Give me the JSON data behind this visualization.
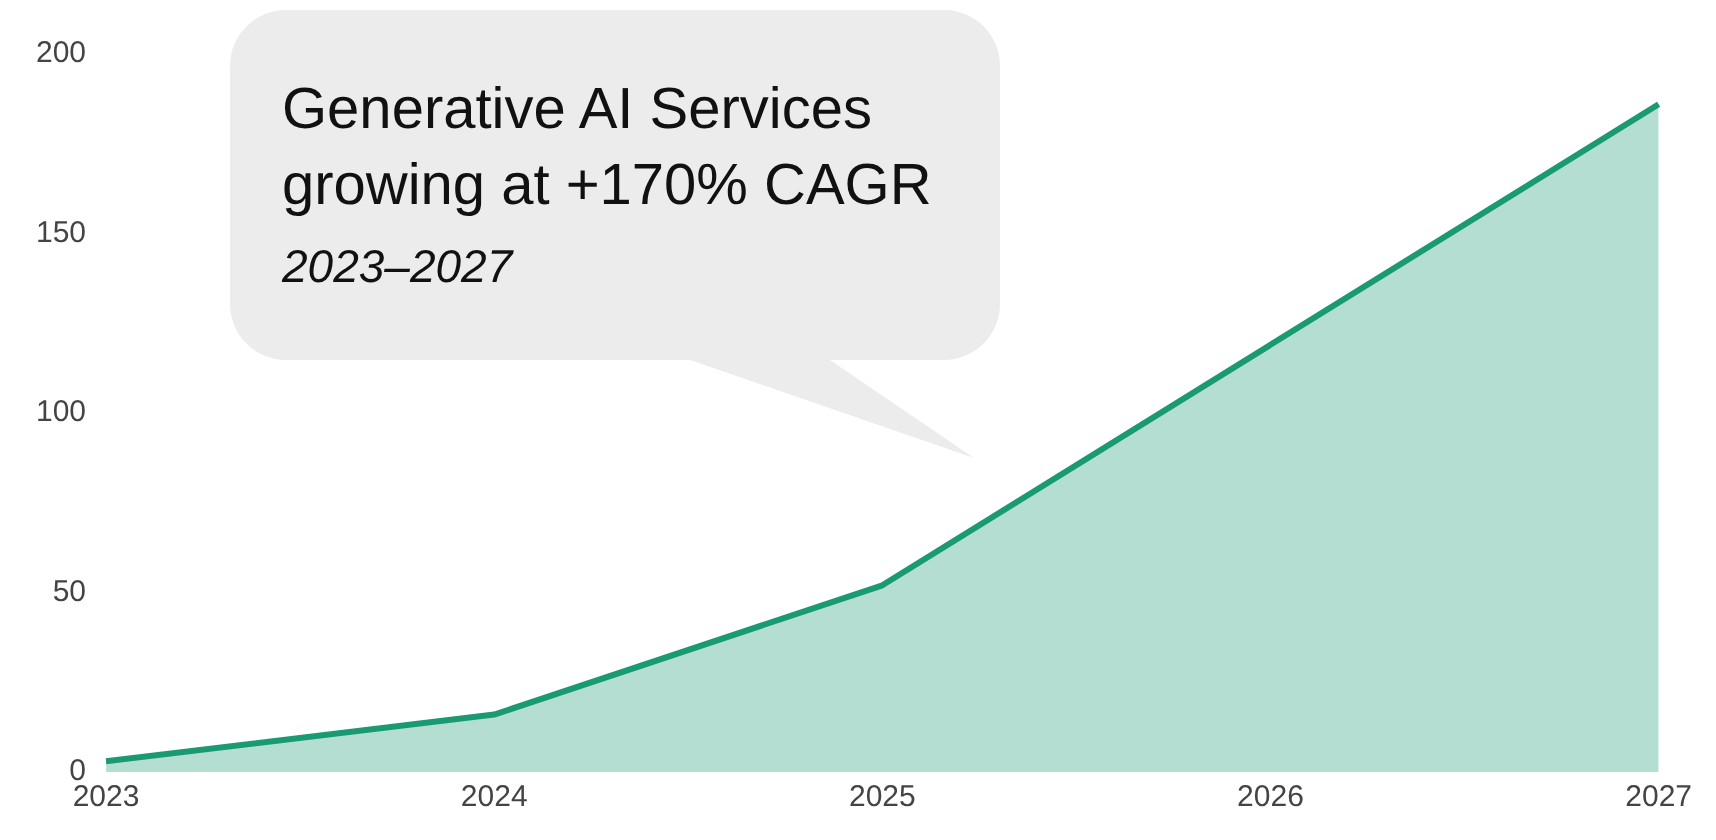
{
  "chart_data": {
    "type": "area",
    "categories": [
      "2023",
      "2024",
      "2025",
      "2026",
      "2027"
    ],
    "series": [
      {
        "color": "#1a9a72",
        "values": [
          3,
          16,
          52,
          119,
          186
        ]
      }
    ],
    "ylim": [
      0,
      200
    ],
    "yticks": [
      0,
      50,
      100,
      150,
      200
    ],
    "grid": false,
    "legend": false,
    "annotations": [
      "Generative AI Services growing at +170% CAGR",
      "2023–2027"
    ]
  }
}
